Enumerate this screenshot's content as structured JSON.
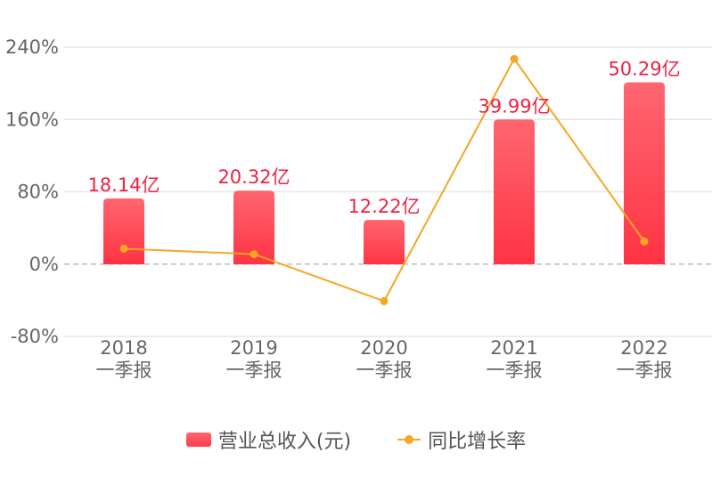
{
  "chart_data": {
    "type": "bar",
    "categories": [
      [
        "2018",
        "一季报"
      ],
      [
        "2019",
        "一季报"
      ],
      [
        "2020",
        "一季报"
      ],
      [
        "2021",
        "一季报"
      ],
      [
        "2022",
        "一季报"
      ]
    ],
    "series": [
      {
        "name": "营业总收入(元)",
        "type": "bar",
        "values": [
          18.14,
          20.32,
          12.22,
          39.99,
          50.29
        ],
        "labels": [
          "18.14亿",
          "20.32亿",
          "12.22亿",
          "39.99亿",
          "50.29亿"
        ],
        "unit": "亿",
        "color": "#ff4455"
      },
      {
        "name": "同比增长率",
        "type": "line",
        "values": [
          17,
          11,
          -41,
          227,
          25
        ],
        "unit": "%",
        "color": "#f5a623"
      }
    ],
    "left_axis": {
      "ticks": [
        "240%",
        "160%",
        "80%",
        "0%",
        "-80%"
      ],
      "tick_values": [
        240,
        160,
        80,
        0,
        -80
      ],
      "range": [
        -80,
        240
      ]
    },
    "bar_axis_range": [
      -20,
      60
    ],
    "grid": true,
    "legend_position": "bottom-center"
  },
  "legend": {
    "revenue": "营业总收入(元)",
    "growth": "同比增长率"
  }
}
